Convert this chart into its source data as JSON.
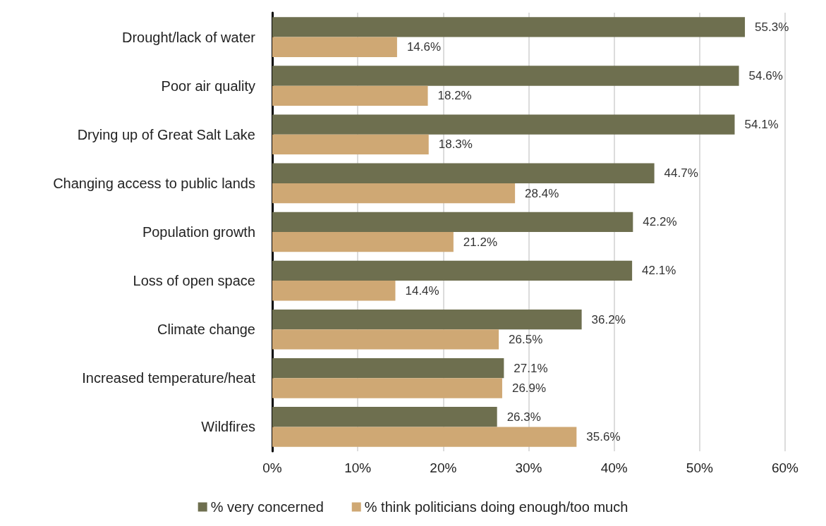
{
  "chart_data": {
    "type": "bar",
    "orientation": "horizontal",
    "categories": [
      "Drought/lack of water",
      "Poor air quality",
      "Drying up of Great Salt Lake",
      "Changing access to public lands",
      "Population growth",
      "Loss of open space",
      "Climate change",
      "Increased temperature/heat",
      "Wildfires"
    ],
    "series": [
      {
        "name": "% very concerned",
        "color": "#6e6f4f",
        "values": [
          55.3,
          54.6,
          54.1,
          44.7,
          42.2,
          42.1,
          36.2,
          27.1,
          26.3
        ],
        "value_labels": [
          "55.3%",
          "54.6%",
          "54.1%",
          "44.7%",
          "42.2%",
          "42.1%",
          "36.2%",
          "27.1%",
          "26.3%"
        ]
      },
      {
        "name": "% think politicians doing enough/too much",
        "color": "#cfa874",
        "values": [
          14.6,
          18.2,
          18.3,
          28.4,
          21.2,
          14.4,
          26.5,
          26.9,
          35.6
        ],
        "value_labels": [
          "14.6%",
          "18.2%",
          "18.3%",
          "28.4%",
          "21.2%",
          "14.4%",
          "26.5%",
          "26.9%",
          "35.6%"
        ]
      }
    ],
    "xlim": [
      0,
      60
    ],
    "xticks": [
      {
        "value": 0,
        "label": "0%"
      },
      {
        "value": 10,
        "label": "10%"
      },
      {
        "value": 20,
        "label": "20%"
      },
      {
        "value": 30,
        "label": "30%"
      },
      {
        "value": 40,
        "label": "40%"
      },
      {
        "value": 50,
        "label": "50%"
      },
      {
        "value": 60,
        "label": "60%"
      }
    ],
    "grid": "x",
    "legend": "bottom"
  }
}
